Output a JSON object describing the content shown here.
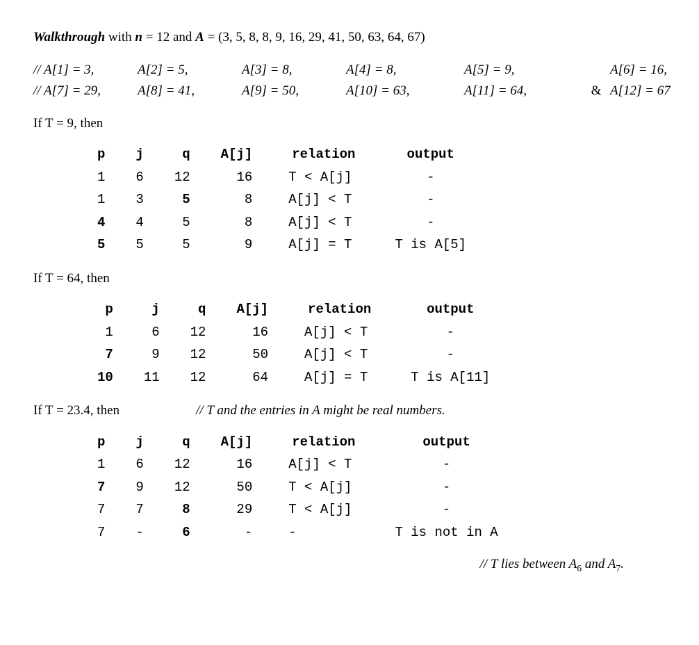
{
  "header": {
    "lead": "Walkthrough",
    "with_text": " with ",
    "n_var": "n",
    "n_eq": " = 12 and ",
    "A_var": "A",
    "A_eq": " = (3, 5, 8, 8, 9, 16, 29, 41, 50, 63, 64, 67)"
  },
  "array_rows": [
    [
      "// A[1] = 3,",
      "A[2] = 5,",
      "A[3] = 8,",
      "A[4] = 8,",
      "A[5] = 9,",
      "",
      "A[6] = 16,"
    ],
    [
      "// A[7] = 29,",
      "A[8] = 41,",
      "A[9] = 50,",
      "A[10] = 63,",
      "A[11] = 64,",
      "&",
      "A[12] = 67"
    ]
  ],
  "tables": [
    {
      "cond": "If T = 9, then",
      "headers": [
        "p",
        "j",
        "q",
        "A[j]",
        "relation",
        "output"
      ],
      "rows": [
        {
          "p": "1",
          "j": "6",
          "q": "12",
          "aj": "16",
          "rel": "T < A[j]",
          "out": "-",
          "bold": {}
        },
        {
          "p": "1",
          "j": "3",
          "q": "5",
          "aj": "8",
          "rel": "A[j] < T",
          "out": "-",
          "bold": {
            "q": true
          }
        },
        {
          "p": "4",
          "j": "4",
          "q": "5",
          "aj": "8",
          "rel": "A[j] < T",
          "out": "-",
          "bold": {
            "p": true
          }
        },
        {
          "p": "5",
          "j": "5",
          "q": "5",
          "aj": "9",
          "rel": "A[j] = T",
          "out": "T is A[5]",
          "bold": {
            "p": true
          }
        }
      ]
    },
    {
      "cond": "If T = 64, then",
      "headers": [
        "p",
        "j",
        "q",
        "A[j]",
        "relation",
        "output"
      ],
      "rows": [
        {
          "p": "1",
          "j": "6",
          "q": "12",
          "aj": "16",
          "rel": "A[j] < T",
          "out": "-",
          "bold": {}
        },
        {
          "p": "7",
          "j": "9",
          "q": "12",
          "aj": "50",
          "rel": "A[j] < T",
          "out": "-",
          "bold": {
            "p": true
          }
        },
        {
          "p": "10",
          "j": "11",
          "q": "12",
          "aj": "64",
          "rel": "A[j] = T",
          "out": "T is A[11]",
          "bold": {
            "p": true
          }
        }
      ]
    },
    {
      "cond": "If T = 23.4, then",
      "inline_comment": "// T and the entries in A might be real numbers.",
      "headers": [
        "p",
        "j",
        "q",
        "A[j]",
        "relation",
        "output"
      ],
      "rows": [
        {
          "p": "1",
          "j": "6",
          "q": "12",
          "aj": "16",
          "rel": "A[j] < T",
          "out": "-",
          "bold": {}
        },
        {
          "p": "7",
          "j": "9",
          "q": "12",
          "aj": "50",
          "rel": "T < A[j]",
          "out": "-",
          "bold": {
            "p": true
          }
        },
        {
          "p": "7",
          "j": "7",
          "q": "8",
          "aj": "29",
          "rel": "T < A[j]",
          "out": "-",
          "bold": {
            "q": true
          }
        },
        {
          "p": "7",
          "j": "-",
          "q": "6",
          "aj": "-",
          "rel": "-",
          "out": "T is not in A",
          "bold": {
            "q": true
          }
        }
      ]
    }
  ],
  "final_comment": {
    "prefix": "// ",
    "T": "T",
    "mid": " lies between ",
    "A6": "A",
    "sub6": "6",
    "and": " and ",
    "A7": "A",
    "sub7": "7",
    "suffix": "."
  }
}
